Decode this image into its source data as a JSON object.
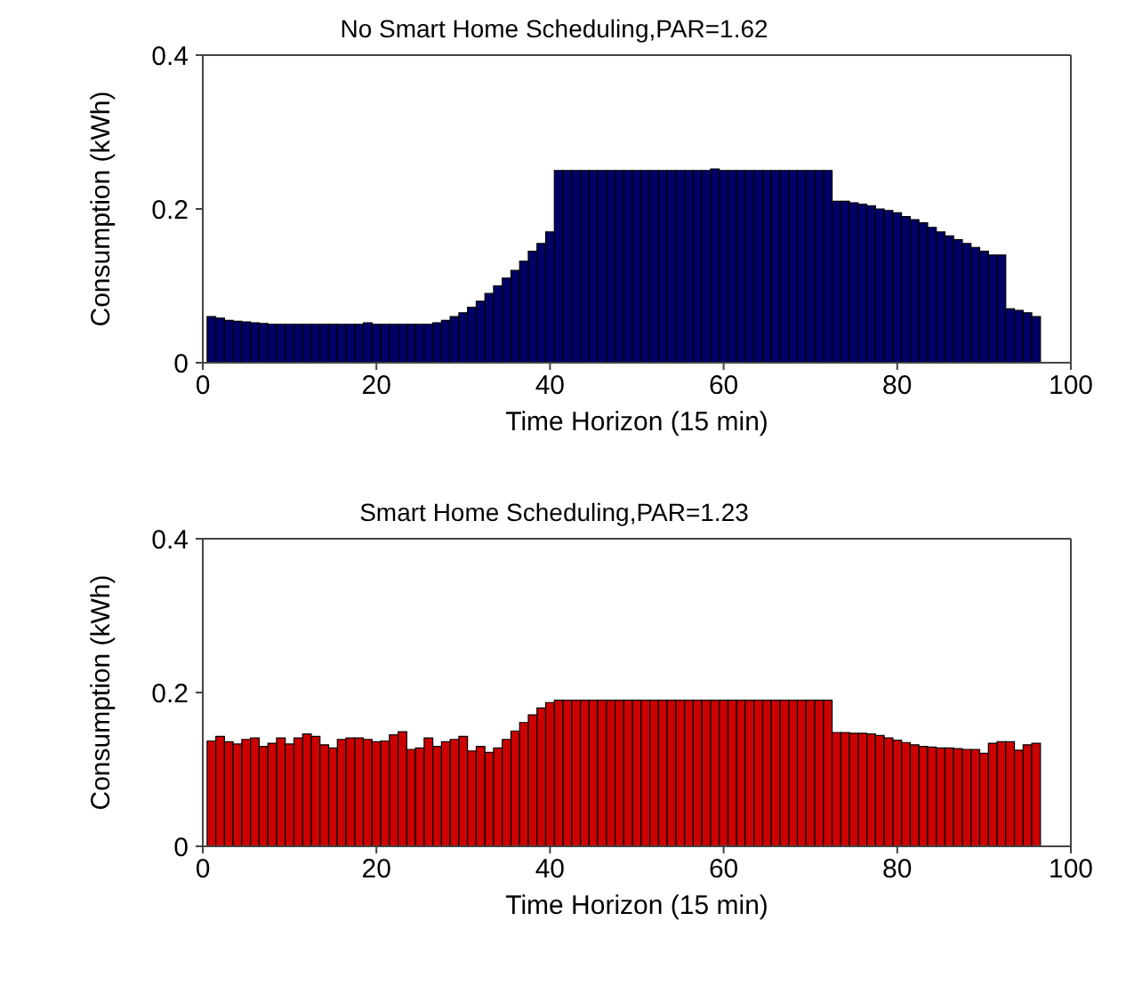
{
  "chart_data": [
    {
      "type": "bar",
      "title": "No Smart Home Scheduling,PAR=1.62",
      "xlabel": "Time Horizon (15 min)",
      "ylabel": "Consumption (kWh)",
      "x": [
        1,
        2,
        3,
        4,
        5,
        6,
        7,
        8,
        9,
        10,
        11,
        12,
        13,
        14,
        15,
        16,
        17,
        18,
        19,
        20,
        21,
        22,
        23,
        24,
        25,
        26,
        27,
        28,
        29,
        30,
        31,
        32,
        33,
        34,
        35,
        36,
        37,
        38,
        39,
        40,
        41,
        42,
        43,
        44,
        45,
        46,
        47,
        48,
        49,
        50,
        51,
        52,
        53,
        54,
        55,
        56,
        57,
        58,
        59,
        60,
        61,
        62,
        63,
        64,
        65,
        66,
        67,
        68,
        69,
        70,
        71,
        72,
        73,
        74,
        75,
        76,
        77,
        78,
        79,
        80,
        81,
        82,
        83,
        84,
        85,
        86,
        87,
        88,
        89,
        90,
        91,
        92,
        93,
        94,
        95,
        96
      ],
      "series": [
        {
          "color": "#000066",
          "values": [
            0.06,
            0.058,
            0.055,
            0.054,
            0.053,
            0.052,
            0.051,
            0.05,
            0.05,
            0.05,
            0.05,
            0.05,
            0.05,
            0.05,
            0.05,
            0.05,
            0.05,
            0.05,
            0.052,
            0.05,
            0.05,
            0.05,
            0.05,
            0.05,
            0.05,
            0.05,
            0.052,
            0.055,
            0.06,
            0.065,
            0.072,
            0.08,
            0.09,
            0.1,
            0.11,
            0.12,
            0.132,
            0.145,
            0.155,
            0.17,
            0.25,
            0.25,
            0.25,
            0.25,
            0.25,
            0.25,
            0.25,
            0.25,
            0.25,
            0.25,
            0.25,
            0.25,
            0.25,
            0.25,
            0.25,
            0.25,
            0.25,
            0.25,
            0.252,
            0.25,
            0.25,
            0.25,
            0.25,
            0.25,
            0.25,
            0.25,
            0.25,
            0.25,
            0.25,
            0.25,
            0.25,
            0.25,
            0.21,
            0.21,
            0.208,
            0.206,
            0.204,
            0.2,
            0.198,
            0.195,
            0.19,
            0.186,
            0.182,
            0.176,
            0.17,
            0.165,
            0.16,
            0.155,
            0.15,
            0.145,
            0.14,
            0.14,
            0.07,
            0.068,
            0.065,
            0.06
          ]
        }
      ],
      "xlim": [
        0,
        100
      ],
      "xticks": [
        0,
        20,
        40,
        60,
        80,
        100
      ],
      "ylim": [
        0,
        0.4
      ],
      "yticks": [
        0,
        0.2,
        0.4
      ],
      "grid": false,
      "legend": false
    },
    {
      "type": "bar",
      "title": "Smart Home Scheduling,PAR=1.23",
      "xlabel": "Time Horizon (15 min)",
      "ylabel": "Consumption (kWh)",
      "x": [
        1,
        2,
        3,
        4,
        5,
        6,
        7,
        8,
        9,
        10,
        11,
        12,
        13,
        14,
        15,
        16,
        17,
        18,
        19,
        20,
        21,
        22,
        23,
        24,
        25,
        26,
        27,
        28,
        29,
        30,
        31,
        32,
        33,
        34,
        35,
        36,
        37,
        38,
        39,
        40,
        41,
        42,
        43,
        44,
        45,
        46,
        47,
        48,
        49,
        50,
        51,
        52,
        53,
        54,
        55,
        56,
        57,
        58,
        59,
        60,
        61,
        62,
        63,
        64,
        65,
        66,
        67,
        68,
        69,
        70,
        71,
        72,
        73,
        74,
        75,
        76,
        77,
        78,
        79,
        80,
        81,
        82,
        83,
        84,
        85,
        86,
        87,
        88,
        89,
        90,
        91,
        92,
        93,
        94,
        95,
        96
      ],
      "series": [
        {
          "color": "#cc0000",
          "values": [
            0.137,
            0.143,
            0.136,
            0.133,
            0.139,
            0.141,
            0.13,
            0.134,
            0.141,
            0.133,
            0.141,
            0.146,
            0.143,
            0.132,
            0.128,
            0.139,
            0.141,
            0.141,
            0.139,
            0.136,
            0.137,
            0.145,
            0.149,
            0.126,
            0.128,
            0.141,
            0.13,
            0.136,
            0.139,
            0.143,
            0.124,
            0.13,
            0.122,
            0.128,
            0.139,
            0.15,
            0.161,
            0.171,
            0.18,
            0.187,
            0.19,
            0.19,
            0.19,
            0.19,
            0.19,
            0.19,
            0.19,
            0.19,
            0.19,
            0.19,
            0.19,
            0.19,
            0.19,
            0.19,
            0.19,
            0.19,
            0.19,
            0.19,
            0.19,
            0.19,
            0.19,
            0.19,
            0.19,
            0.19,
            0.19,
            0.19,
            0.19,
            0.19,
            0.19,
            0.19,
            0.19,
            0.19,
            0.148,
            0.148,
            0.147,
            0.147,
            0.146,
            0.144,
            0.141,
            0.138,
            0.135,
            0.132,
            0.13,
            0.129,
            0.128,
            0.128,
            0.127,
            0.126,
            0.126,
            0.121,
            0.134,
            0.136,
            0.136,
            0.125,
            0.132,
            0.134
          ]
        }
      ],
      "xlim": [
        0,
        100
      ],
      "xticks": [
        0,
        20,
        40,
        60,
        80,
        100
      ],
      "ylim": [
        0,
        0.4
      ],
      "yticks": [
        0,
        0.2,
        0.4
      ],
      "grid": false,
      "legend": false
    }
  ]
}
